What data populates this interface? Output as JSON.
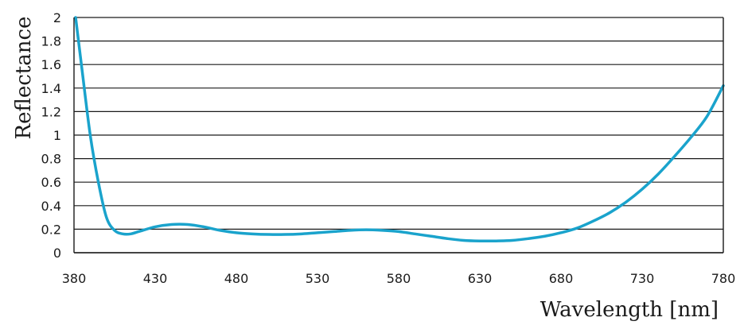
{
  "chart_data": {
    "type": "line",
    "title": "",
    "xlabel": "Wavelength [nm]",
    "ylabel": "Reflectance",
    "xlim": [
      380,
      780
    ],
    "ylim": [
      0,
      2
    ],
    "x_ticks": [
      "380",
      "430",
      "480",
      "530",
      "580",
      "630",
      "680",
      "730",
      "780"
    ],
    "y_ticks": [
      "0",
      "0.2",
      "0.4",
      "0.6",
      "0.8",
      "1",
      "1.2",
      "1.4",
      "1.6",
      "1.8",
      "2"
    ],
    "grid": "horizontal",
    "legend": "none",
    "series": [
      {
        "color": "#1aa3cc",
        "x": [
          381,
          385,
          390,
          395,
          400,
          405,
          410,
          415,
          420,
          430,
          440,
          450,
          460,
          470,
          480,
          490,
          500,
          510,
          520,
          530,
          540,
          550,
          560,
          570,
          580,
          590,
          600,
          610,
          620,
          630,
          640,
          650,
          660,
          670,
          680,
          690,
          700,
          710,
          720,
          730,
          740,
          750,
          760,
          770,
          780
        ],
        "y": [
          2.0,
          1.55,
          1.0,
          0.6,
          0.3,
          0.19,
          0.16,
          0.16,
          0.18,
          0.22,
          0.24,
          0.24,
          0.22,
          0.19,
          0.17,
          0.16,
          0.155,
          0.155,
          0.16,
          0.17,
          0.18,
          0.19,
          0.195,
          0.19,
          0.18,
          0.16,
          0.14,
          0.12,
          0.105,
          0.1,
          0.1,
          0.105,
          0.12,
          0.14,
          0.17,
          0.21,
          0.27,
          0.34,
          0.43,
          0.54,
          0.67,
          0.82,
          0.98,
          1.16,
          1.42
        ]
      }
    ]
  }
}
